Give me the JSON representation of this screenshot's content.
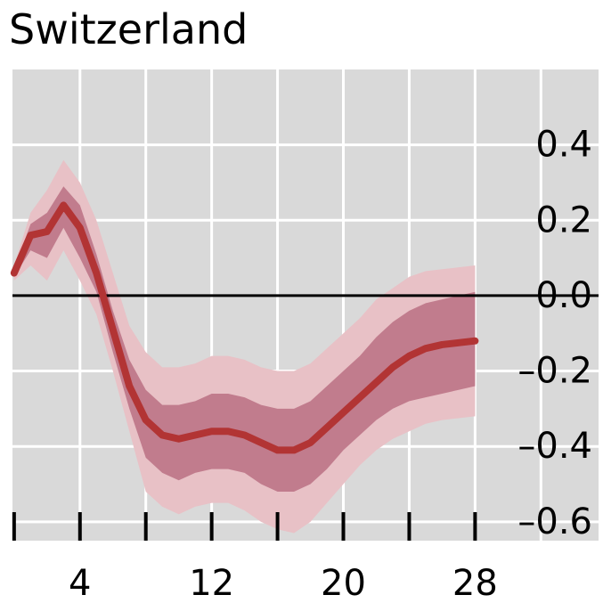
{
  "chart_data": {
    "type": "line",
    "title": "Switzerland",
    "xlabel": "",
    "ylabel": "",
    "x_ticks": [
      4,
      12,
      20,
      28
    ],
    "x_tick_labels": [
      "4",
      "12",
      "20",
      "28"
    ],
    "y_ticks": [
      0.4,
      0.2,
      0.0,
      -0.2,
      -0.4,
      -0.6
    ],
    "y_tick_labels": [
      "0.4",
      "0.2",
      "0.0",
      "–0.2",
      "–0.4",
      "–0.6"
    ],
    "xlim": [
      -0.1,
      35.5
    ],
    "ylim": [
      -0.65,
      0.6
    ],
    "grid": true,
    "zero_line": true,
    "y_axis_position": "right",
    "x": [
      0,
      1,
      2,
      3,
      4,
      5,
      6,
      7,
      8,
      9,
      10,
      11,
      12,
      13,
      14,
      15,
      16,
      17,
      18,
      19,
      20,
      21,
      22,
      23,
      24,
      25,
      26,
      27,
      28
    ],
    "series": [
      {
        "values": [
          0.06,
          0.16,
          0.17,
          0.24,
          0.18,
          0.06,
          -0.09,
          -0.24,
          -0.33,
          -0.37,
          -0.38,
          -0.37,
          -0.36,
          -0.36,
          -0.37,
          -0.39,
          -0.41,
          -0.41,
          -0.39,
          -0.35,
          -0.31,
          -0.27,
          -0.23,
          -0.19,
          -0.16,
          -0.14,
          -0.13,
          -0.125,
          -0.12
        ],
        "bands": [
          {
            "level": "outer",
            "lower": [
              0.04,
              0.08,
              0.04,
              0.12,
              0.04,
              -0.05,
              -0.2,
              -0.36,
              -0.52,
              -0.56,
              -0.58,
              -0.56,
              -0.55,
              -0.55,
              -0.57,
              -0.6,
              -0.62,
              -0.63,
              -0.6,
              -0.55,
              -0.5,
              -0.45,
              -0.41,
              -0.38,
              -0.36,
              -0.34,
              -0.33,
              -0.325,
              -0.32
            ],
            "upper": [
              0.08,
              0.22,
              0.28,
              0.36,
              0.3,
              0.2,
              0.06,
              -0.08,
              -0.15,
              -0.19,
              -0.19,
              -0.18,
              -0.16,
              -0.16,
              -0.17,
              -0.19,
              -0.2,
              -0.2,
              -0.18,
              -0.14,
              -0.1,
              -0.06,
              -0.01,
              0.02,
              0.05,
              0.065,
              0.07,
              0.075,
              0.08
            ]
          },
          {
            "level": "inner",
            "lower": [
              0.05,
              0.12,
              0.1,
              0.18,
              0.1,
              0.01,
              -0.15,
              -0.3,
              -0.43,
              -0.47,
              -0.49,
              -0.47,
              -0.46,
              -0.46,
              -0.47,
              -0.5,
              -0.52,
              -0.52,
              -0.5,
              -0.46,
              -0.41,
              -0.37,
              -0.33,
              -0.3,
              -0.28,
              -0.27,
              -0.26,
              -0.25,
              -0.24
            ],
            "upper": [
              0.07,
              0.19,
              0.22,
              0.29,
              0.24,
              0.11,
              -0.04,
              -0.17,
              -0.25,
              -0.29,
              -0.29,
              -0.28,
              -0.26,
              -0.26,
              -0.27,
              -0.29,
              -0.3,
              -0.3,
              -0.28,
              -0.24,
              -0.2,
              -0.16,
              -0.11,
              -0.07,
              -0.04,
              -0.02,
              -0.01,
              0.0,
              0.01
            ]
          }
        ]
      }
    ],
    "colors": {
      "plot_background": "#d9d9d9",
      "grid": "#ffffff",
      "zero_line": "#000000",
      "ticks": "#000000",
      "outer_band": "#e8c1c6",
      "inner_band": "#c17c8d",
      "line": "#b23434"
    }
  }
}
